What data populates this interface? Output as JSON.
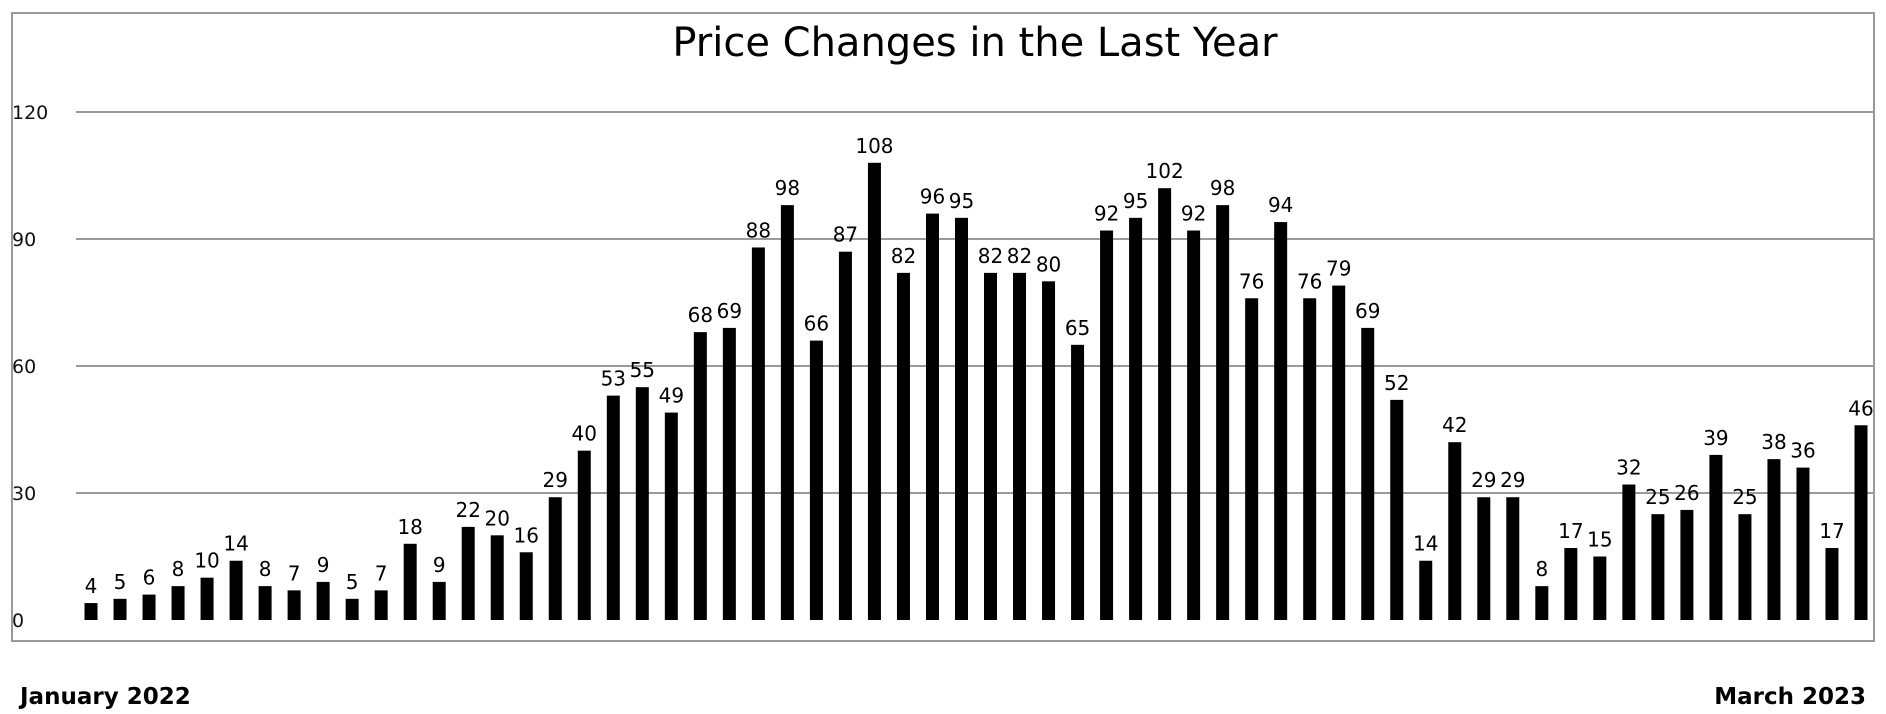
{
  "chart_data": {
    "type": "bar",
    "title": "Price Changes in the Last Year",
    "xlabel": "",
    "ylabel": "",
    "start_label": "January 2022",
    "end_label": "March 2023",
    "ylim": [
      0,
      120
    ],
    "yticks": [
      0,
      30,
      60,
      90,
      120
    ],
    "grid": true,
    "colors": {
      "bar": "#000000",
      "grid": "#9a9a9a"
    },
    "values": [
      4,
      5,
      6,
      8,
      10,
      14,
      8,
      7,
      9,
      5,
      7,
      18,
      9,
      22,
      20,
      16,
      29,
      40,
      53,
      55,
      49,
      68,
      69,
      88,
      98,
      66,
      87,
      108,
      82,
      96,
      95,
      82,
      82,
      80,
      65,
      92,
      95,
      102,
      92,
      98,
      76,
      94,
      76,
      79,
      69,
      52,
      14,
      42,
      29,
      29,
      8,
      17,
      15,
      32,
      25,
      26,
      39,
      25,
      38,
      36,
      17,
      46
    ]
  }
}
